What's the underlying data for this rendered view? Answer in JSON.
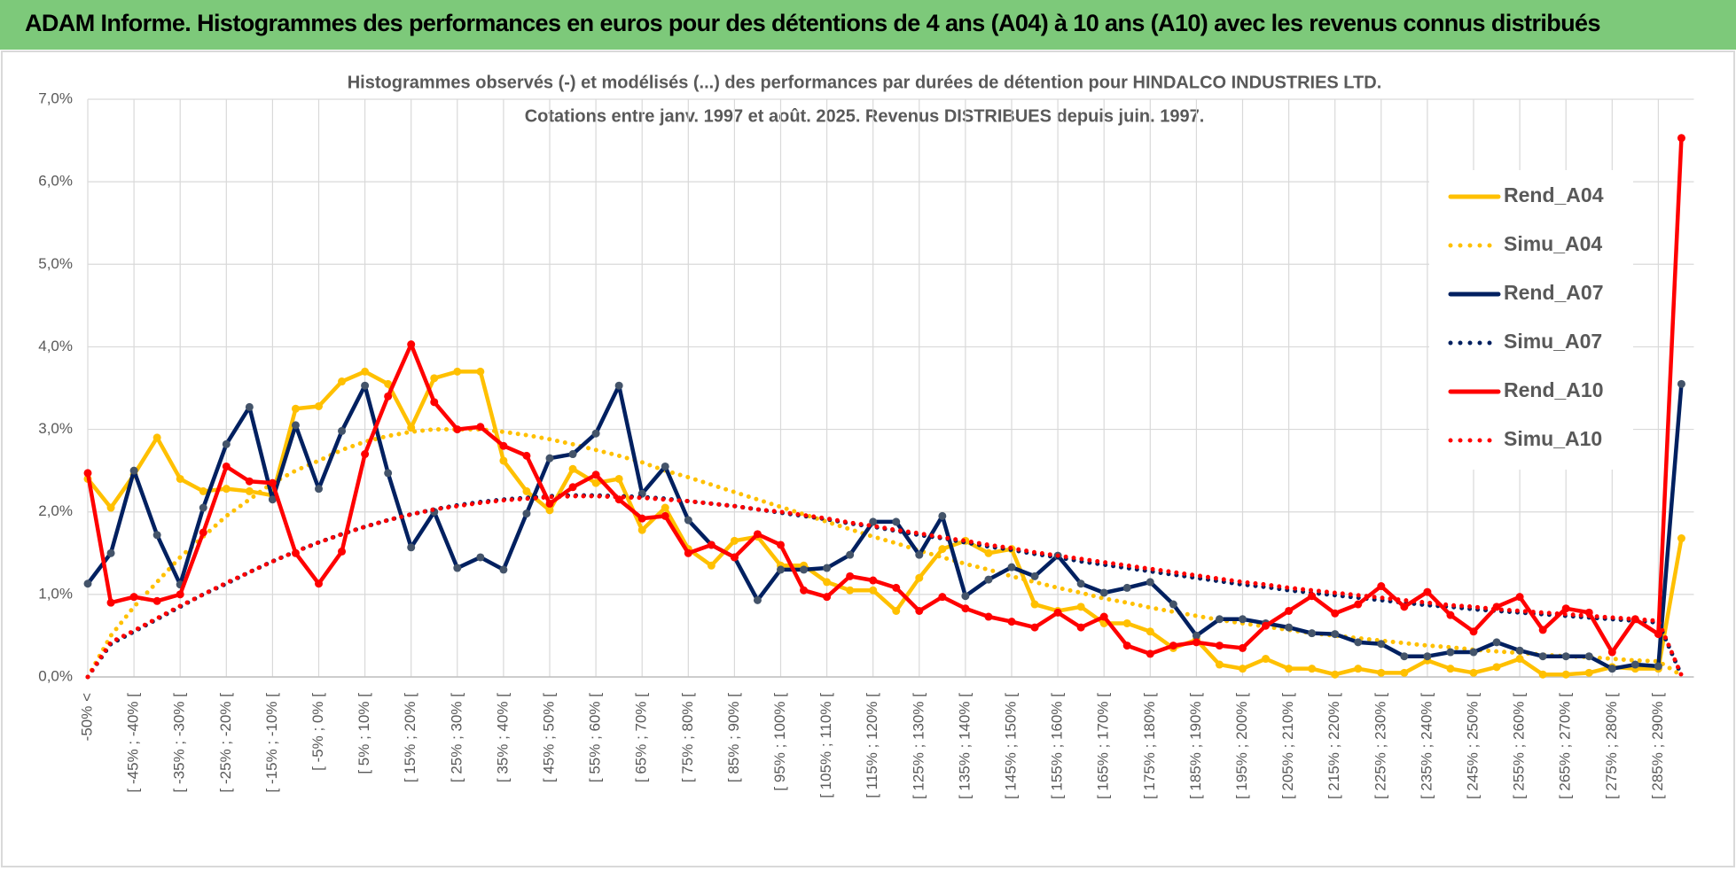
{
  "header": {
    "title": "ADAM Informe. Histogrammes des performances en euros pour des détentions de 4 ans (A04) à 10 ans (A10) avec les revenus connus distribués"
  },
  "chart_data": {
    "type": "line",
    "title": "Histogrammes observés (-) et modélisés (...) des performances par durées de détention pour HINDALCO INDUSTRIES LTD.",
    "subtitle": "Cotations entre janv. 1997 et août. 2025. Revenus DISTRIBUES depuis juin. 1997.",
    "categories": [
      "-50% <",
      null,
      "[ -45% ; -40% [",
      null,
      "[ -35% ; -30% [",
      null,
      "[ -25% ; -20% [",
      null,
      "[ -15% ; -10% [",
      null,
      "[ -5% ; 0% [",
      null,
      "[ 5% ; 10% [",
      null,
      "[ 15% ; 20% [",
      null,
      "[ 25% ; 30% [",
      null,
      "[ 35% ; 40% [",
      null,
      "[ 45% ; 50% [",
      null,
      "[ 55% ; 60% [",
      null,
      "[ 65% ; 70% [",
      null,
      "[ 75% ; 80% [",
      null,
      "[ 85% ; 90% [",
      null,
      "[ 95% ; 100% [",
      null,
      "[ 105% ; 110% [",
      null,
      "[ 115% ; 120% [",
      null,
      "[ 125% ; 130% [",
      null,
      "[ 135% ; 140% [",
      null,
      "[ 145% ; 150% [",
      null,
      "[ 155% ; 160% [",
      null,
      "[ 165% ; 170% [",
      null,
      "[ 175% ; 180% [",
      null,
      "[ 185% ; 190% [",
      null,
      "[ 195% ; 200% [",
      null,
      "[ 205% ; 210% [",
      null,
      "[ 215% ; 220% [",
      null,
      "[ 225% ; 230% [",
      null,
      "[ 235% ; 240% [",
      null,
      "[ 245% ; 250% [",
      null,
      "[ 255% ; 260% [",
      null,
      "[ 265% ; 270% [",
      null,
      "[ 275% ; 280% [",
      null,
      "[ 285% ; 290% [",
      null
    ],
    "series": [
      {
        "name": "Rend_A04",
        "color": "#FFC000",
        "line_style": "solid",
        "marker": true,
        "values": [
          2.4,
          2.05,
          2.45,
          2.9,
          2.4,
          2.25,
          2.28,
          2.25,
          2.2,
          3.25,
          3.28,
          3.58,
          3.7,
          3.55,
          3.02,
          3.62,
          3.7,
          3.7,
          2.62,
          2.25,
          2.02,
          2.52,
          2.35,
          2.4,
          1.78,
          2.05,
          1.55,
          1.35,
          1.65,
          1.7,
          1.35,
          1.35,
          1.15,
          1.05,
          1.05,
          0.8,
          1.2,
          1.55,
          1.65,
          1.5,
          1.55,
          0.88,
          0.8,
          0.85,
          0.65,
          0.65,
          0.55,
          0.35,
          0.45,
          0.15,
          0.1,
          0.22,
          0.1,
          0.1,
          0.03,
          0.1,
          0.05,
          0.05,
          0.2,
          0.1,
          0.05,
          0.12,
          0.22,
          0.03,
          0.03,
          0.05,
          0.12,
          0.1,
          0.1,
          1.68
        ]
      },
      {
        "name": "Simu_A04",
        "color": "#FFC000",
        "line_style": "dotted",
        "marker": false,
        "values": [
          0.0,
          0.5,
          0.85,
          1.15,
          1.45,
          1.7,
          1.95,
          2.15,
          2.35,
          2.5,
          2.62,
          2.75,
          2.85,
          2.92,
          2.97,
          3.0,
          3.0,
          3.0,
          2.97,
          2.93,
          2.88,
          2.82,
          2.75,
          2.68,
          2.6,
          2.5,
          2.42,
          2.33,
          2.24,
          2.15,
          2.06,
          1.97,
          1.88,
          1.79,
          1.7,
          1.62,
          1.53,
          1.45,
          1.37,
          1.3,
          1.22,
          1.15,
          1.08,
          1.02,
          0.95,
          0.9,
          0.84,
          0.79,
          0.74,
          0.69,
          0.65,
          0.61,
          0.57,
          0.53,
          0.5,
          0.47,
          0.44,
          0.41,
          0.38,
          0.36,
          0.33,
          0.31,
          0.29,
          0.27,
          0.25,
          0.24,
          0.22,
          0.2,
          0.19,
          0.02
        ]
      },
      {
        "name": "Rend_A07",
        "color": "#002060",
        "line_style": "solid",
        "marker": true,
        "values": [
          1.13,
          1.5,
          2.5,
          1.72,
          1.12,
          2.05,
          2.82,
          3.27,
          2.15,
          3.05,
          2.28,
          2.98,
          3.53,
          2.47,
          1.57,
          2.0,
          1.32,
          1.45,
          1.3,
          1.98,
          2.65,
          2.7,
          2.95,
          3.53,
          2.22,
          2.55,
          1.9,
          1.6,
          1.45,
          0.93,
          1.3,
          1.3,
          1.32,
          1.48,
          1.88,
          1.88,
          1.48,
          1.95,
          0.98,
          1.18,
          1.33,
          1.22,
          1.47,
          1.13,
          1.02,
          1.08,
          1.15,
          0.88,
          0.5,
          0.7,
          0.7,
          0.65,
          0.6,
          0.53,
          0.52,
          0.42,
          0.4,
          0.25,
          0.25,
          0.3,
          0.3,
          0.42,
          0.32,
          0.25,
          0.25,
          0.25,
          0.1,
          0.15,
          0.13,
          3.55
        ]
      },
      {
        "name": "Simu_A07",
        "color": "#002060",
        "line_style": "dotted",
        "marker": false,
        "values": [
          0.0,
          0.4,
          0.55,
          0.7,
          0.85,
          1.0,
          1.13,
          1.27,
          1.4,
          1.52,
          1.63,
          1.73,
          1.82,
          1.9,
          1.97,
          2.03,
          2.08,
          2.12,
          2.15,
          2.17,
          2.19,
          2.2,
          2.2,
          2.19,
          2.18,
          2.16,
          2.13,
          2.1,
          2.07,
          2.03,
          1.99,
          1.95,
          1.91,
          1.86,
          1.82,
          1.77,
          1.72,
          1.68,
          1.63,
          1.58,
          1.54,
          1.49,
          1.45,
          1.4,
          1.36,
          1.32,
          1.28,
          1.24,
          1.2,
          1.16,
          1.12,
          1.09,
          1.05,
          1.02,
          0.99,
          0.96,
          0.93,
          0.9,
          0.87,
          0.85,
          0.82,
          0.8,
          0.78,
          0.76,
          0.74,
          0.72,
          0.7,
          0.68,
          0.66,
          0.02
        ]
      },
      {
        "name": "Rend_A10",
        "color": "#FF0000",
        "line_style": "solid",
        "marker": true,
        "values": [
          2.47,
          0.9,
          0.97,
          0.92,
          1.0,
          1.75,
          2.55,
          2.37,
          2.35,
          1.5,
          1.13,
          1.52,
          2.7,
          3.4,
          4.03,
          3.33,
          3.0,
          3.03,
          2.8,
          2.68,
          2.1,
          2.3,
          2.45,
          2.15,
          1.92,
          1.95,
          1.5,
          1.6,
          1.45,
          1.73,
          1.6,
          1.05,
          0.97,
          1.22,
          1.17,
          1.08,
          0.8,
          0.97,
          0.83,
          0.73,
          0.67,
          0.6,
          0.78,
          0.6,
          0.73,
          0.38,
          0.28,
          0.38,
          0.42,
          0.38,
          0.35,
          0.62,
          0.8,
          0.98,
          0.77,
          0.88,
          1.1,
          0.85,
          1.03,
          0.75,
          0.55,
          0.85,
          0.97,
          0.57,
          0.83,
          0.78,
          0.3,
          0.7,
          0.52,
          6.53
        ]
      },
      {
        "name": "Simu_A10",
        "color": "#FF0000",
        "line_style": "dotted",
        "marker": false,
        "values": [
          0.0,
          0.42,
          0.56,
          0.71,
          0.86,
          1.0,
          1.14,
          1.27,
          1.4,
          1.52,
          1.63,
          1.73,
          1.82,
          1.9,
          1.97,
          2.03,
          2.07,
          2.11,
          2.14,
          2.16,
          2.18,
          2.19,
          2.19,
          2.18,
          2.17,
          2.15,
          2.13,
          2.1,
          2.07,
          2.03,
          2.0,
          1.96,
          1.92,
          1.87,
          1.83,
          1.78,
          1.74,
          1.69,
          1.65,
          1.6,
          1.56,
          1.51,
          1.47,
          1.43,
          1.39,
          1.35,
          1.31,
          1.27,
          1.23,
          1.19,
          1.15,
          1.12,
          1.08,
          1.05,
          1.02,
          0.99,
          0.96,
          0.93,
          0.9,
          0.87,
          0.85,
          0.82,
          0.8,
          0.78,
          0.76,
          0.74,
          0.72,
          0.7,
          0.68,
          0.02
        ]
      }
    ],
    "ylim": [
      0,
      7
    ],
    "yticks": [
      {
        "value": 0,
        "label": "0,0%"
      },
      {
        "value": 1,
        "label": "1,0%"
      },
      {
        "value": 2,
        "label": "2,0%"
      },
      {
        "value": 3,
        "label": "3,0%"
      },
      {
        "value": 4,
        "label": "4,0%"
      },
      {
        "value": 5,
        "label": "5,0%"
      },
      {
        "value": 6,
        "label": "6,0%"
      },
      {
        "value": 7,
        "label": "7,0%"
      }
    ],
    "grid": true,
    "legend": "right"
  }
}
